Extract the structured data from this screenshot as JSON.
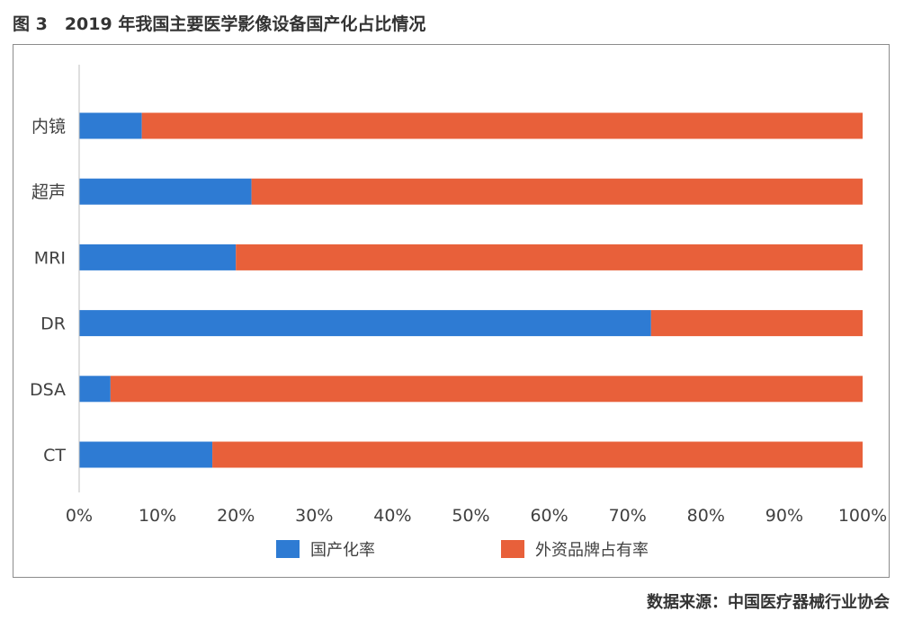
{
  "figure": {
    "title": "图 3　2019 年我国主要医学影像设备国产化占比情况",
    "source": "数据来源：中国医疗器械行业协会"
  },
  "colors": {
    "domestic": "#2e7bd3",
    "foreign": "#e8603a",
    "axis": "#bfbfbf",
    "text": "#404040"
  },
  "chart_data": {
    "type": "bar",
    "orientation": "horizontal",
    "stacked": true,
    "categories": [
      "内镜",
      "超声",
      "MRI",
      "DR",
      "DSA",
      "CT"
    ],
    "series": [
      {
        "name": "国产化率",
        "values": [
          8,
          22,
          20,
          73,
          4,
          17
        ]
      },
      {
        "name": "外资品牌占有率",
        "values": [
          92,
          78,
          80,
          27,
          96,
          83
        ]
      }
    ],
    "xlim": [
      0,
      100
    ],
    "xticks": [
      "0%",
      "10%",
      "20%",
      "30%",
      "40%",
      "50%",
      "60%",
      "70%",
      "80%",
      "90%",
      "100%"
    ],
    "grid": false,
    "legend_position": "bottom"
  }
}
